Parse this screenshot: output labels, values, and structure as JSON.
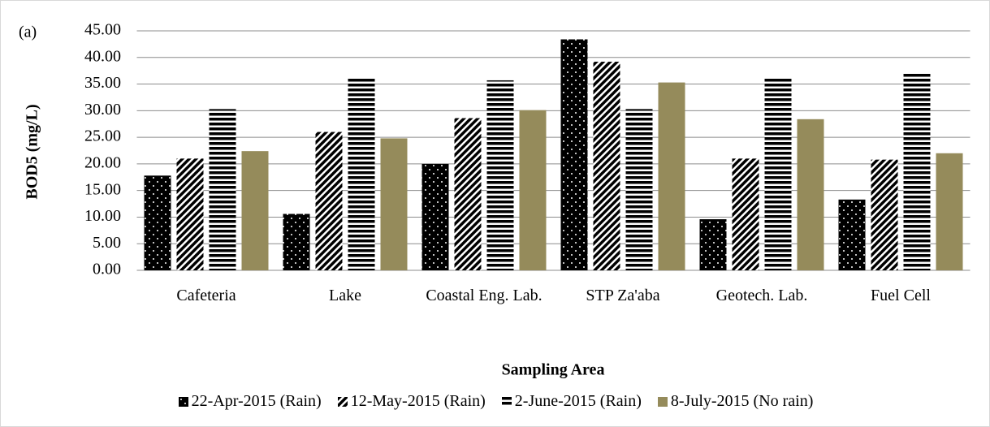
{
  "chart_data": {
    "type": "bar",
    "annotation": "(a)",
    "y_label": "BOD5 (mg/L)",
    "x_label": "Sampling Area",
    "categories": [
      "Cafeteria",
      "Lake",
      "Coastal Eng. Lab.",
      "STP Za'aba",
      "Geotech. Lab.",
      "Fuel Cell"
    ],
    "series": [
      {
        "name": "22-Apr-2015 (Rain)",
        "color": "#000000",
        "pattern": "dots",
        "values": [
          17.8,
          10.6,
          20.0,
          43.4,
          9.6,
          13.3
        ]
      },
      {
        "name": "12-May-2015 (Rain)",
        "color": "#000000",
        "pattern": "diagonal",
        "values": [
          21.0,
          26.0,
          28.6,
          39.2,
          21.0,
          20.8
        ]
      },
      {
        "name": "2-June-2015 (Rain)",
        "color": "#000000",
        "pattern": "horizontal",
        "values": [
          30.3,
          36.0,
          35.7,
          30.3,
          36.1,
          37.2
        ]
      },
      {
        "name": "8-July-2015 (No rain)",
        "color": "#958b5b",
        "pattern": "solid",
        "values": [
          22.4,
          24.8,
          30.1,
          35.3,
          28.4,
          22.0
        ]
      }
    ],
    "ylim": [
      0,
      45
    ],
    "yticks": [
      {
        "value": 0,
        "label": "0.00"
      },
      {
        "value": 5,
        "label": "5.00"
      },
      {
        "value": 10,
        "label": "10.00"
      },
      {
        "value": 15,
        "label": "15.00"
      },
      {
        "value": 20,
        "label": "20.00"
      },
      {
        "value": 25,
        "label": "25.00"
      },
      {
        "value": 30,
        "label": "30.00"
      },
      {
        "value": 35,
        "label": "35.00"
      },
      {
        "value": 40,
        "label": "40.00"
      },
      {
        "value": 45,
        "label": "45.00"
      }
    ],
    "grid": true,
    "legend": "bottom"
  }
}
